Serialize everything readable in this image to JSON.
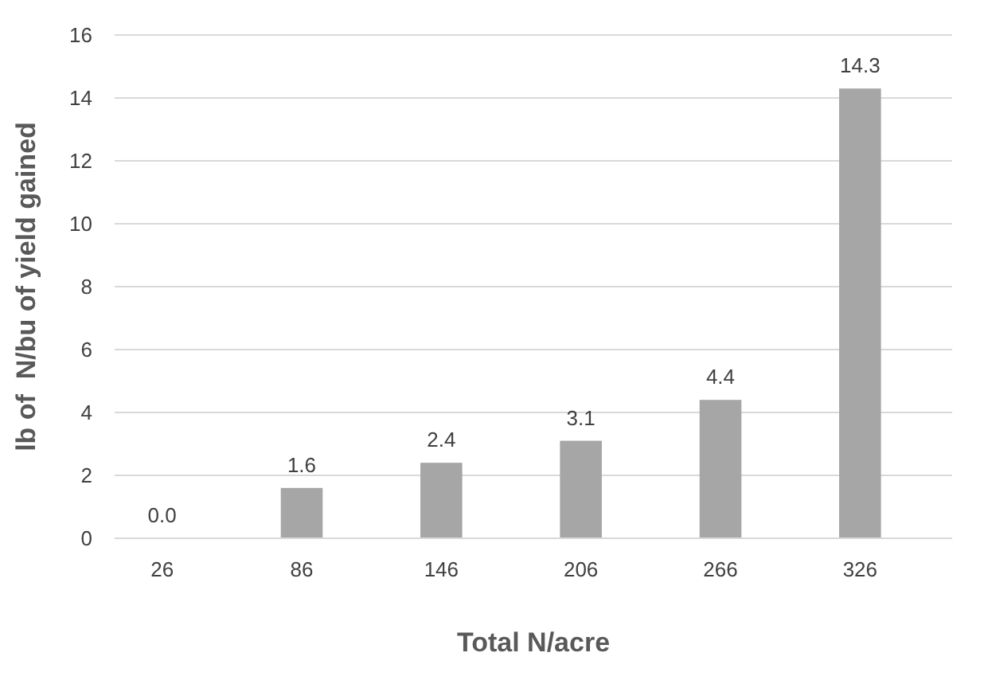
{
  "chart_data": {
    "type": "bar",
    "xlabel": "Total N/acre",
    "ylabel": "lb of  N/bu of yield gained",
    "categories": [
      "26",
      "86",
      "146",
      "206",
      "266",
      "326"
    ],
    "values": [
      0,
      1.6,
      2.4,
      3.1,
      4.4,
      14.3
    ],
    "value_labels": [
      "0.0",
      "1.6",
      "2.4",
      "3.1",
      "4.4",
      "14.3"
    ],
    "color": "#a6a6a6",
    "ylim": [
      0,
      16
    ],
    "yticks": [
      0,
      2,
      4,
      6,
      8,
      10,
      12,
      14,
      16
    ],
    "grid": "y"
  }
}
